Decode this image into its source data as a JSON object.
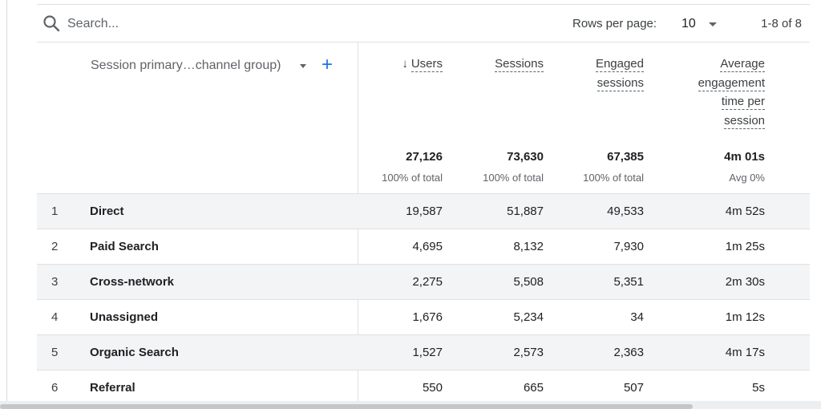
{
  "toolbar": {
    "search_placeholder": "Search...",
    "rows_per_page_label": "Rows per page:",
    "rows_per_page_value": "10",
    "range_text": "1-8 of 8"
  },
  "dimension": {
    "label": "Session primary…channel group)",
    "add_icon": "+"
  },
  "columns": [
    {
      "lines": [
        "Users"
      ],
      "sorted": true,
      "sort_icon": "↓",
      "total": "27,126",
      "total_sub": "100% of total"
    },
    {
      "lines": [
        "Sessions"
      ],
      "sorted": false,
      "total": "73,630",
      "total_sub": "100% of total"
    },
    {
      "lines": [
        "Engaged",
        "sessions"
      ],
      "sorted": false,
      "total": "67,385",
      "total_sub": "100% of total"
    },
    {
      "lines": [
        "Average",
        "engagement",
        "time per",
        "session"
      ],
      "sorted": false,
      "total": "4m 01s",
      "total_sub": "Avg 0%"
    }
  ],
  "rows": [
    {
      "index": "1",
      "name": "Direct",
      "users": "19,587",
      "sessions": "51,887",
      "engaged": "49,533",
      "avg_time": "4m 52s"
    },
    {
      "index": "2",
      "name": "Paid Search",
      "users": "4,695",
      "sessions": "8,132",
      "engaged": "7,930",
      "avg_time": "1m 25s"
    },
    {
      "index": "3",
      "name": "Cross-network",
      "users": "2,275",
      "sessions": "5,508",
      "engaged": "5,351",
      "avg_time": "2m 30s"
    },
    {
      "index": "4",
      "name": "Unassigned",
      "users": "1,676",
      "sessions": "5,234",
      "engaged": "34",
      "avg_time": "1m 12s"
    },
    {
      "index": "5",
      "name": "Organic Search",
      "users": "1,527",
      "sessions": "2,573",
      "engaged": "2,363",
      "avg_time": "4m 17s"
    },
    {
      "index": "6",
      "name": "Referral",
      "users": "550",
      "sessions": "665",
      "engaged": "507",
      "avg_time": "5s"
    }
  ],
  "icons": {
    "search": "search-icon",
    "dropdown": "chevron-down-icon",
    "sort": "arrow-down-icon",
    "add": "plus-icon"
  },
  "colors": {
    "accent": "#1a73e8",
    "row_shade": "#f3f4f6",
    "divider": "#e0e0e0",
    "muted_text": "#5f6368"
  }
}
